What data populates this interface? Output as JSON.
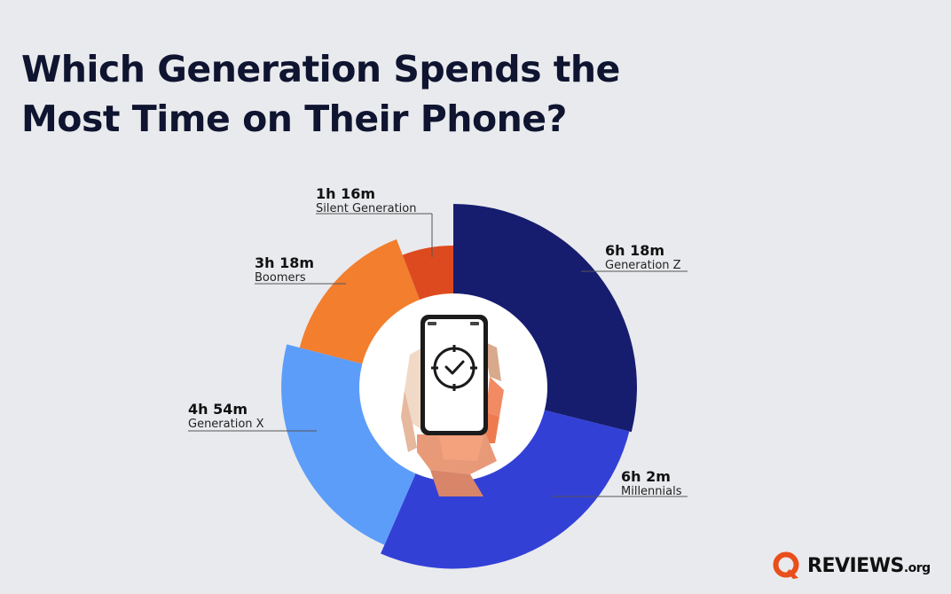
{
  "title": "Which Generation Spends the Most Time on Their Phone?",
  "logo": {
    "text": "REVIEWS",
    "suffix": ".org",
    "accent": "#e94e1b"
  },
  "chart_data": {
    "type": "pie",
    "style": "variable-radius donut",
    "unit": "hours per day",
    "title": "Which Generation Spends the Most Time on Their Phone?",
    "center_image": "hand-holding-smartphone-clock-icon",
    "series": [
      {
        "name": "Generation Z",
        "value": 6.3,
        "label": "6h 18m",
        "color": "#161d6f"
      },
      {
        "name": "Millennials",
        "value": 6.03,
        "label": "6h 2m",
        "color": "#3340d6"
      },
      {
        "name": "Generation X",
        "value": 4.9,
        "label": "4h 54m",
        "color": "#5c9dfa"
      },
      {
        "name": "Boomers",
        "value": 3.3,
        "label": "3h 18m",
        "color": "#f27e2e"
      },
      {
        "name": "Silent Generation",
        "value": 1.27,
        "label": "1h 16m",
        "color": "#de4a1f"
      }
    ]
  }
}
